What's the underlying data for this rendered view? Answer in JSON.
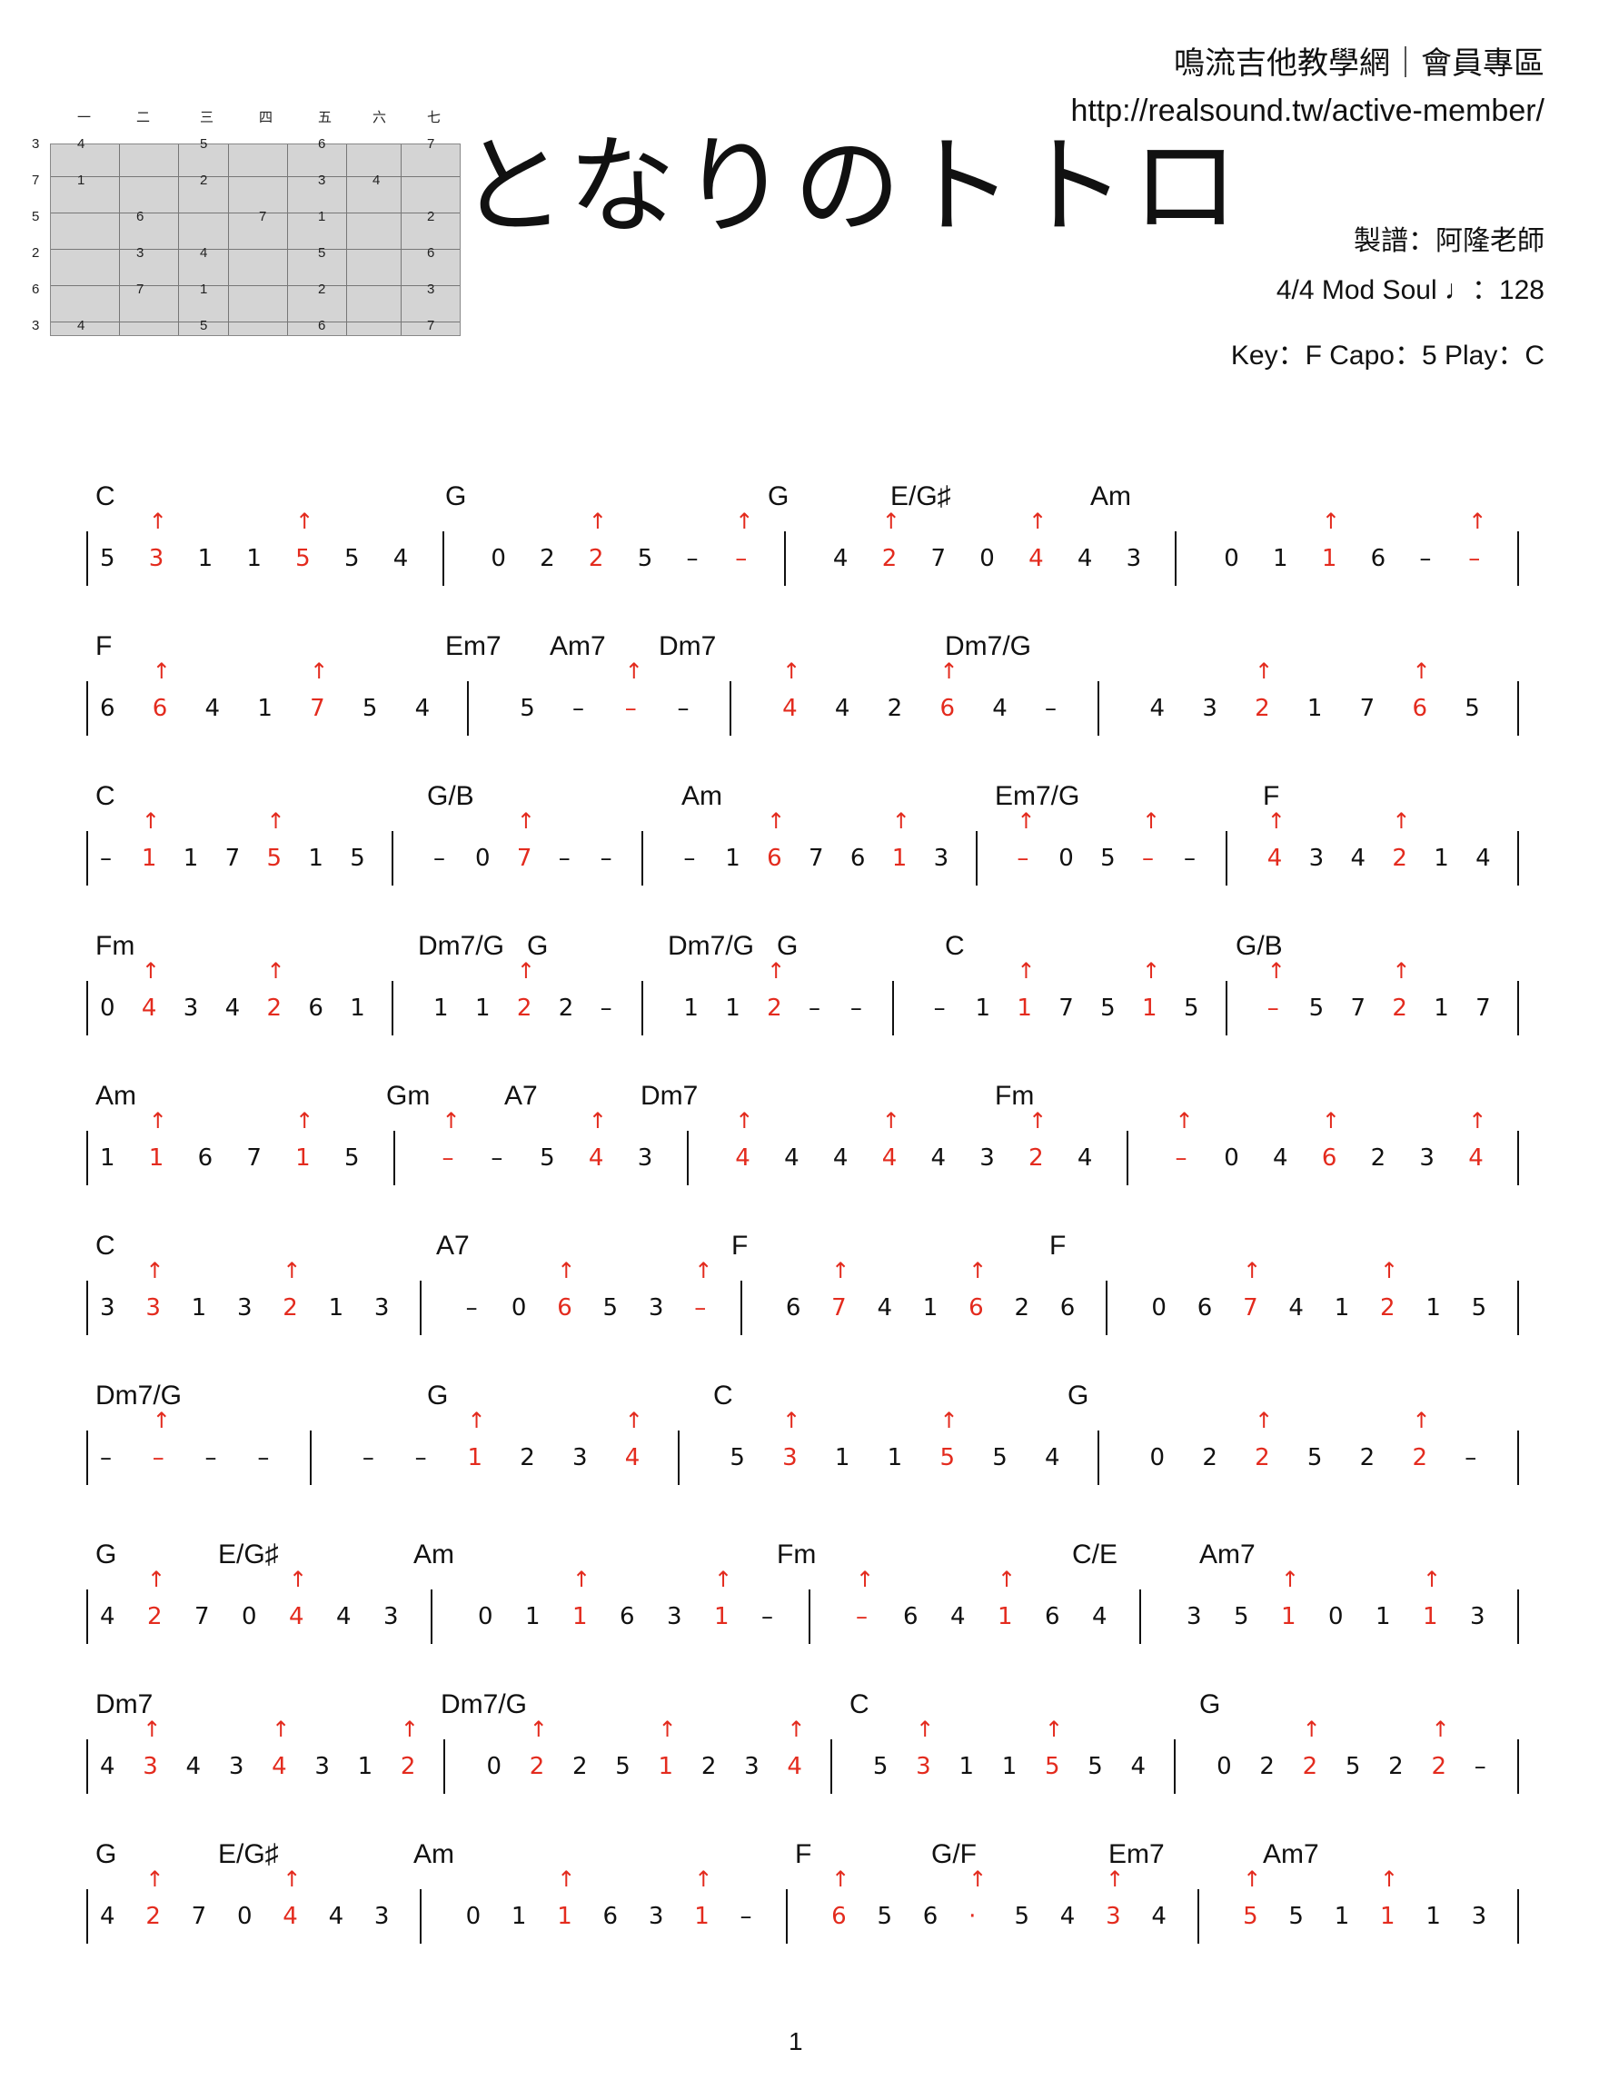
{
  "header": {
    "site": "鳴流吉他教學網｜會員專區",
    "url": "http://realsound.tw/active-member/",
    "title": "となりのトトロ",
    "arranger": "製譜：阿隆老師",
    "tempo": "4/4   Mod Soul   ♩：128",
    "key": "Key：F   Capo：5  Play：C"
  },
  "fretboard": {
    "cols": [
      "一",
      "二",
      "三",
      "四",
      "五",
      "六",
      "七"
    ],
    "left": [
      "3",
      "7",
      "5",
      "2",
      "6",
      "3"
    ],
    "rows": [
      [
        "4",
        "",
        "5",
        "",
        "6",
        "",
        "7"
      ],
      [
        "1",
        "",
        "2",
        "",
        "3",
        "4",
        ""
      ],
      [
        "",
        "6",
        "",
        "7",
        "1",
        "",
        "2"
      ],
      [
        "",
        "3",
        "4",
        "",
        "5",
        "",
        "6"
      ],
      [
        "",
        "7",
        "1",
        "",
        "2",
        "",
        "3"
      ],
      [
        "4",
        "",
        "5",
        "",
        "6",
        "",
        "7"
      ]
    ]
  },
  "rows": [
    {
      "chords": [
        [
          "C",
          0
        ],
        [
          "G",
          385
        ],
        [
          "G",
          740
        ],
        [
          "E/G♯",
          875
        ],
        [
          "Am",
          1095
        ]
      ],
      "notes": "5   3 1  1 5   5 4 | 0 2   2 5   –  – | 4   2 7  0 4   4 3 | 0 1   1 6   –  –"
    },
    {
      "chords": [
        [
          "F",
          0
        ],
        [
          "Em7",
          385
        ],
        [
          "Am7",
          500
        ],
        [
          "Dm7",
          620
        ],
        [
          "Dm7/G",
          935
        ]
      ],
      "notes": "6   6 4  1 7  5 4 | 5  –  –  – | 4  4 2  6 4  – | 4 3  2 1  7 6  5"
    },
    {
      "chords": [
        [
          "C",
          0
        ],
        [
          "G/B",
          365
        ],
        [
          "Am",
          645
        ],
        [
          "Em7/G",
          990
        ],
        [
          "F",
          1285
        ]
      ],
      "notes": "–  1 1  7 5  1 5 | –  0 7  –  – | –  1 6  7 6  1 3 | –  0 5  –  – | 4  3 4  2  1 4"
    },
    {
      "chords": [
        [
          "Fm",
          0
        ],
        [
          "Dm7/G",
          355
        ],
        [
          "G",
          475
        ],
        [
          "Dm7/G",
          630
        ],
        [
          "G",
          750
        ],
        [
          "C",
          935
        ],
        [
          "G/B",
          1255
        ]
      ],
      "notes": "0 4  3 4  2 6  1 | 1  1 2  2  – | 1  1 2  –  – || –  1 1  7 5  1 5 | –  5 7  2  1 7"
    },
    {
      "chords": [
        [
          "Am",
          0
        ],
        [
          "Gm",
          320
        ],
        [
          "A7",
          450
        ],
        [
          "Dm7",
          600
        ],
        [
          "Fm",
          990
        ]
      ],
      "notes": "1  1 6  7  1 5 | –  –  5  4 3 | 4 4  4 4  4 3  2 4 | –  0 4  6 2  3 4"
    },
    {
      "chords": [
        [
          "C",
          0
        ],
        [
          "A7",
          375
        ],
        [
          "F",
          700
        ],
        [
          "F",
          1050
        ]
      ],
      "notes": "3  3 1  3 2  1 3 | –  0 6  5 3  – | 6  7 4  1 6  2 6 | 0 6  7 4  1 2  1 5"
    },
    {
      "chords": [
        [
          "Dm7/G",
          0
        ],
        [
          "G",
          365
        ],
        [
          "C",
          680
        ],
        [
          "G",
          1070
        ]
      ],
      "notes": "–  –  –  – | –  –  1 2  3 4 || 5  3 1  1 5  5 4 | 0 2  2 5  2 2  –"
    },
    {
      "chords": [
        [
          "G",
          0
        ],
        [
          "E/G♯",
          135
        ],
        [
          "Am",
          350
        ],
        [
          "Fm",
          750
        ],
        [
          "C/E",
          1075
        ],
        [
          "Am7",
          1215
        ]
      ],
      "notes": "4  2 7  0 4  4 3 | 0 1  1 6  3 1  – | –  6 4  1 6  4 | 3  5 1  0 1  1 3"
    },
    {
      "chords": [
        [
          "Dm7",
          0
        ],
        [
          "Dm7/G",
          380
        ],
        [
          "C",
          830
        ],
        [
          "G",
          1215
        ]
      ],
      "notes": "4 3  4 3  4 3  1 2 | 0 2  2 5  1 2  3 4 || 5  3 1  1 5  5 4 | 0 2  2 5  2 2  –"
    },
    {
      "chords": [
        [
          "G",
          0
        ],
        [
          "E/G♯",
          135
        ],
        [
          "Am",
          350
        ],
        [
          "F",
          770
        ],
        [
          "G/F",
          920
        ],
        [
          "Em7",
          1115
        ],
        [
          "Am7",
          1285
        ]
      ],
      "notes": "4  2 7  0 4  4 3 | 0 1  1 6  3 1  – | 6  5 6 ·  5 4  3 4 | 5  5 1  1  1 3"
    }
  ],
  "page": "1"
}
